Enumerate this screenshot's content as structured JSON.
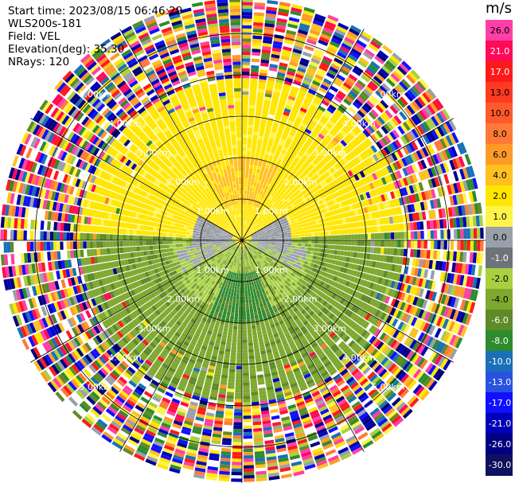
{
  "header": {
    "start_time": "Start time: 2023/08/15 06:46:29",
    "instrument": "WLS200s-181",
    "field": "Field: VEL",
    "elevation": "Elevation(deg): 35.30",
    "nrays": "NRays: 120"
  },
  "colorbar": {
    "unit": "m/s",
    "ticks": [
      "26.0",
      "21.0",
      "17.0",
      "13.0",
      "10.0",
      "8.0",
      "6.0",
      "4.0",
      "2.0",
      "1.0",
      "0.0",
      "-1.0",
      "-2.0",
      "-4.0",
      "-6.0",
      "-8.0",
      "-10.0",
      "-13.0",
      "-17.0",
      "-21.0",
      "-26.0",
      "-30.0"
    ],
    "colors": [
      "#ff3fa6",
      "#ff0a57",
      "#ff1a1a",
      "#ff3a22",
      "#ff5a2c",
      "#ff7a36",
      "#ff9a28",
      "#ffc020",
      "#ffe600",
      "#fff44a",
      "#9aa0aa",
      "#6e737a",
      "#a8d040",
      "#7fa82f",
      "#5f8a28",
      "#2e8b2e",
      "#1a6fb8",
      "#2a52e0",
      "#1010ff",
      "#0000b8",
      "#000080",
      "#101060"
    ]
  },
  "range_labels": [
    "1.00km",
    "2.00km",
    "3.00km",
    "4.00km",
    "5.00km"
  ],
  "ring_distances_km": [
    1,
    2,
    3,
    4,
    5
  ],
  "max_range_km": 5.9,
  "ray_count": 120
}
